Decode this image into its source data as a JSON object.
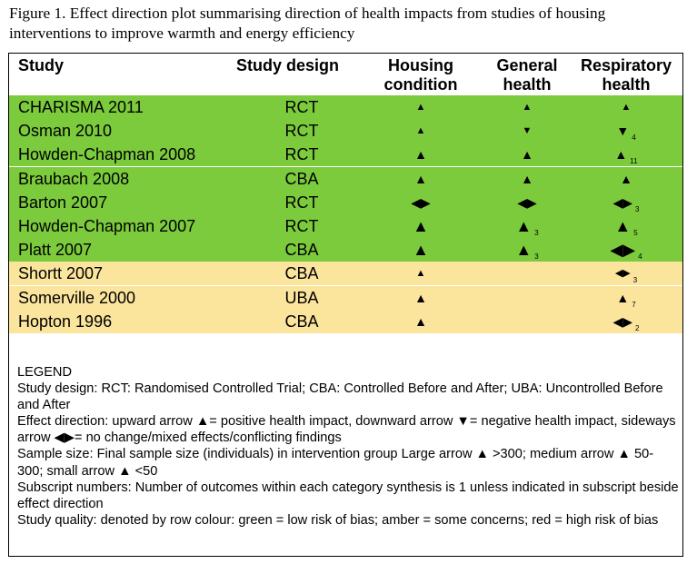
{
  "caption": "Figure 1. Effect direction plot summarising direction of health impacts from studies of housing interventions to improve warmth and energy efficiency",
  "headers": {
    "study": "Study",
    "design": "Study design",
    "housing_line1": "Housing",
    "housing_line2": "condition",
    "general_line1": "General",
    "general_line2": "health",
    "resp_line1": "Respiratory",
    "resp_line2": "health"
  },
  "colors": {
    "green": "#7ccb3d",
    "amber": "#fbe49c"
  },
  "rows": [
    {
      "study": "CHARISMA 2011",
      "design": "RCT",
      "quality": "green",
      "hc": {
        "dir": "up",
        "size": "small",
        "glyph": "▲",
        "sub": ""
      },
      "gh": {
        "dir": "up",
        "size": "small",
        "glyph": "▲",
        "sub": ""
      },
      "rh": {
        "dir": "up",
        "size": "small",
        "glyph": "▲",
        "sub": ""
      }
    },
    {
      "study": "Osman 2010",
      "design": "RCT",
      "quality": "green",
      "hc": {
        "dir": "up",
        "size": "small",
        "glyph": "▲",
        "sub": ""
      },
      "gh": {
        "dir": "down",
        "size": "small",
        "glyph": "▼",
        "sub": ""
      },
      "rh": {
        "dir": "down",
        "size": "medium",
        "glyph": "▼",
        "sub": "4"
      }
    },
    {
      "study": "Howden-Chapman 2008",
      "design": "RCT",
      "quality": "green",
      "hc": {
        "dir": "up",
        "size": "medium",
        "glyph": "▲",
        "sub": ""
      },
      "gh": {
        "dir": "up",
        "size": "medium",
        "glyph": "▲",
        "sub": ""
      },
      "rh": {
        "dir": "up",
        "size": "medium",
        "glyph": "▲",
        "sub": "11"
      }
    },
    {
      "study": "Braubach 2008",
      "design": "CBA",
      "quality": "green",
      "hc": {
        "dir": "up",
        "size": "medium",
        "glyph": "▲",
        "sub": ""
      },
      "gh": {
        "dir": "up",
        "size": "medium",
        "glyph": "▲",
        "sub": ""
      },
      "rh": {
        "dir": "up",
        "size": "medium",
        "glyph": "▲",
        "sub": ""
      }
    },
    {
      "study": "Barton 2007",
      "design": "RCT",
      "quality": "green",
      "hc": {
        "dir": "sideways",
        "size": "medium",
        "glyph": "◀▶",
        "sub": ""
      },
      "gh": {
        "dir": "sideways",
        "size": "medium",
        "glyph": "◀▶",
        "sub": ""
      },
      "rh": {
        "dir": "sideways",
        "size": "medium",
        "glyph": "◀▶",
        "sub": "3"
      }
    },
    {
      "study": "Howden-Chapman 2007",
      "design": "RCT",
      "quality": "green",
      "hc": {
        "dir": "up",
        "size": "large",
        "glyph": "▲",
        "sub": ""
      },
      "gh": {
        "dir": "up",
        "size": "large",
        "glyph": "▲",
        "sub": "3"
      },
      "rh": {
        "dir": "up",
        "size": "large",
        "glyph": "▲",
        "sub": "5"
      }
    },
    {
      "study": "Platt 2007",
      "design": "CBA",
      "quality": "green",
      "hc": {
        "dir": "up",
        "size": "large",
        "glyph": "▲",
        "sub": ""
      },
      "gh": {
        "dir": "up",
        "size": "large",
        "glyph": "▲",
        "sub": "3"
      },
      "rh": {
        "dir": "sideways",
        "size": "large",
        "glyph": "◀▶",
        "sub": "4"
      }
    },
    {
      "study": "Shortt 2007",
      "design": "CBA",
      "quality": "amber",
      "hc": {
        "dir": "up",
        "size": "small",
        "glyph": "▲",
        "sub": ""
      },
      "gh": null,
      "rh": {
        "dir": "sideways",
        "size": "small",
        "glyph": "◀▶",
        "sub": "3"
      }
    },
    {
      "study": "Somerville 2000",
      "design": "UBA",
      "quality": "amber",
      "hc": {
        "dir": "up",
        "size": "medium",
        "glyph": "▲",
        "sub": ""
      },
      "gh": null,
      "rh": {
        "dir": "up",
        "size": "medium",
        "glyph": "▲",
        "sub": "7"
      }
    },
    {
      "study": "Hopton 1996",
      "design": "CBA",
      "quality": "amber",
      "hc": {
        "dir": "up",
        "size": "medium",
        "glyph": "▲",
        "sub": ""
      },
      "gh": null,
      "rh": {
        "dir": "sideways",
        "size": "medium",
        "glyph": "◀▶",
        "sub": "2"
      }
    }
  ],
  "legend": {
    "title": "LEGEND",
    "design": "Study design: RCT: Randomised Controlled Trial; CBA: Controlled Before and After; UBA: Uncontrolled Before and After",
    "effect": "Effect direction: upward arrow ▲= positive health impact, downward arrow ▼= negative health impact, sideways arrow ◀▶= no change/mixed effects/conflicting findings",
    "sample": "Sample size: Final sample size (individuals) in intervention group Large arrow ▲ >300; medium arrow ▲ 50-300; small arrow ▲ <50",
    "subscript": "Subscript numbers: Number of outcomes within each category synthesis is 1 unless indicated in subscript beside effect direction",
    "quality": "Study quality: denoted by row colour: green = low risk of bias; amber = some concerns; red = high risk of bias"
  }
}
